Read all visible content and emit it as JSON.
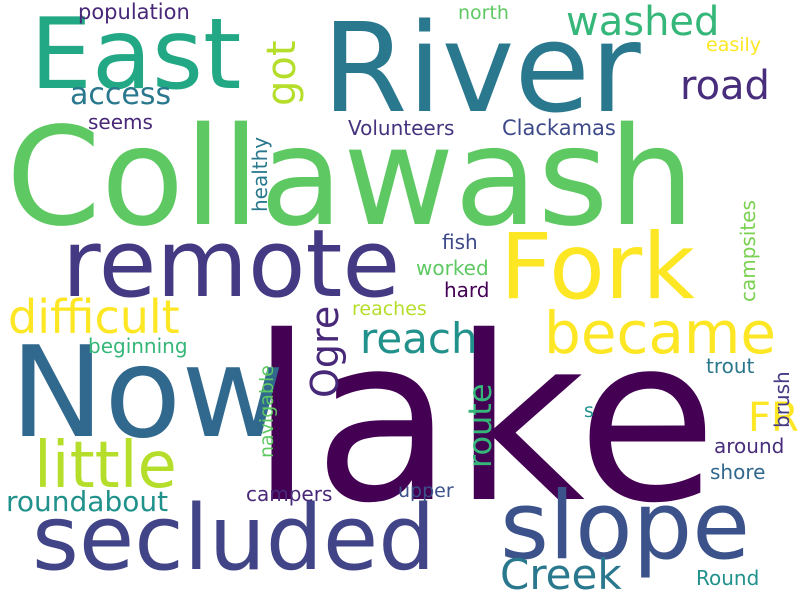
{
  "words": [
    {
      "text": "lake",
      "color": "#440154",
      "rotate": 0
    },
    {
      "text": "Collawash",
      "color": "#5ec962",
      "rotate": 0
    },
    {
      "text": "River",
      "color": "#2a788e",
      "rotate": 0
    },
    {
      "text": "Now",
      "color": "#31688e",
      "rotate": 0
    },
    {
      "text": "East",
      "color": "#22a884",
      "rotate": 0
    },
    {
      "text": "remote",
      "color": "#443983",
      "rotate": 0
    },
    {
      "text": "Fork",
      "color": "#fde725",
      "rotate": 0
    },
    {
      "text": "secluded",
      "color": "#414487",
      "rotate": 0
    },
    {
      "text": "slope",
      "color": "#3b528b",
      "rotate": 0
    },
    {
      "text": "became",
      "color": "#fde725",
      "rotate": 0
    },
    {
      "text": "little",
      "color": "#b5de2b",
      "rotate": 0
    },
    {
      "text": "difficult",
      "color": "#fde725",
      "rotate": 0
    },
    {
      "text": "Creek",
      "color": "#2a788e",
      "rotate": 0
    },
    {
      "text": "reach",
      "color": "#21918c",
      "rotate": 0
    },
    {
      "text": "Ogre",
      "color": "#482878",
      "rotate": -90
    },
    {
      "text": "washed",
      "color": "#35b779",
      "rotate": 0
    },
    {
      "text": "road",
      "color": "#472d7b",
      "rotate": 0
    },
    {
      "text": "got",
      "color": "#b5de2b",
      "rotate": -90
    },
    {
      "text": "FR",
      "color": "#fde725",
      "rotate": 0
    },
    {
      "text": "roundabout",
      "color": "#21918c",
      "rotate": 0
    },
    {
      "text": "route",
      "color": "#35b779",
      "rotate": -90
    },
    {
      "text": "access",
      "color": "#2a788e",
      "rotate": 0
    },
    {
      "text": "population",
      "color": "#482878",
      "rotate": 0
    },
    {
      "text": "north",
      "color": "#5ec962",
      "rotate": 0
    },
    {
      "text": "easily",
      "color": "#fde725",
      "rotate": 0
    },
    {
      "text": "seems",
      "color": "#482878",
      "rotate": 0
    },
    {
      "text": "healthy",
      "color": "#2a788e",
      "rotate": -90
    },
    {
      "text": "Volunteers",
      "color": "#46337e",
      "rotate": 0
    },
    {
      "text": "Clackamas",
      "color": "#3e4989",
      "rotate": 0
    },
    {
      "text": "campsites",
      "color": "#7ad151",
      "rotate": -90
    },
    {
      "text": "fish",
      "color": "#3e4989",
      "rotate": 0
    },
    {
      "text": "worked",
      "color": "#5ec962",
      "rotate": 0
    },
    {
      "text": "hard",
      "color": "#440154",
      "rotate": 0
    },
    {
      "text": "reaches",
      "color": "#b5de2b",
      "rotate": 0
    },
    {
      "text": "beginning",
      "color": "#35b779",
      "rotate": 0
    },
    {
      "text": "navigable",
      "color": "#5ec962",
      "rotate": -90
    },
    {
      "text": "trout",
      "color": "#2a788e",
      "rotate": 0
    },
    {
      "text": "brush",
      "color": "#443983",
      "rotate": -90
    },
    {
      "text": "s",
      "color": "#21918c",
      "rotate": 0
    },
    {
      "text": "around",
      "color": "#472d7b",
      "rotate": 0
    },
    {
      "text": "shore",
      "color": "#31688e",
      "rotate": 0
    },
    {
      "text": "campers",
      "color": "#482878",
      "rotate": 0
    },
    {
      "text": "upper",
      "color": "#3b528b",
      "rotate": 0
    },
    {
      "text": "Round",
      "color": "#21918c",
      "rotate": 0
    }
  ]
}
